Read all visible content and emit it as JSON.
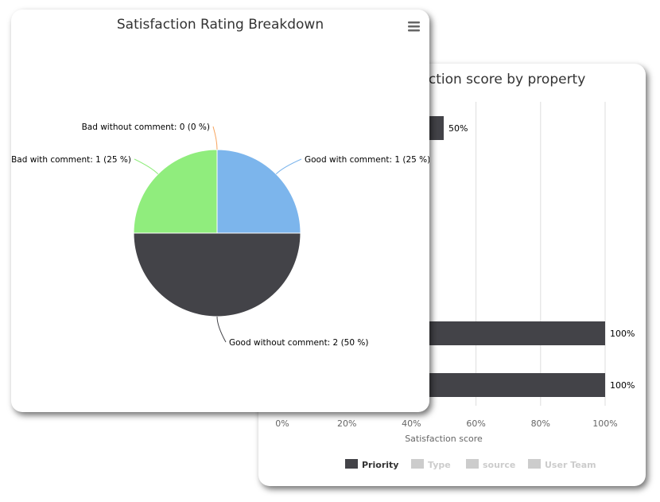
{
  "bar_chart": {
    "title": "Satisfaction score by property",
    "chart_data": {
      "type": "bar",
      "orientation": "horizontal",
      "values": [
        50,
        100,
        100
      ],
      "data_labels": [
        "50%",
        "100%",
        "100%"
      ],
      "xlabel": "Satisfaction score",
      "xlim": [
        0,
        100
      ],
      "ticks": [
        "0%",
        "20%",
        "40%",
        "60%",
        "80%",
        "100%"
      ],
      "grid": true,
      "legend_position": "bottom",
      "legend": [
        {
          "name": "Priority",
          "color": "#434348",
          "active": true
        },
        {
          "name": "Type",
          "color": "#cccccc",
          "active": false
        },
        {
          "name": "source",
          "color": "#cccccc",
          "active": false
        },
        {
          "name": "User Team",
          "color": "#cccccc",
          "active": false
        }
      ],
      "bar_color": "#434348"
    }
  },
  "pie_chart": {
    "title": "Satisfaction Rating Breakdown",
    "menu_icon": "hamburger-menu-icon",
    "chart_data": {
      "type": "pie",
      "slices": [
        {
          "name": "Good with comment",
          "value": 1,
          "percent": 25,
          "color": "#7cb5ec",
          "label": "Good with comment: 1 (25 %)"
        },
        {
          "name": "Good without comment",
          "value": 2,
          "percent": 50,
          "color": "#434348",
          "label": "Good without comment: 2 (50 %)"
        },
        {
          "name": "Bad with comment",
          "value": 1,
          "percent": 25,
          "color": "#90ed7d",
          "label": "Bad with comment: 1 (25 %)"
        },
        {
          "name": "Bad without comment",
          "value": 0,
          "percent": 0,
          "color": "#f7a35c",
          "label": "Bad without comment: 0 (0 %)"
        }
      ]
    }
  }
}
